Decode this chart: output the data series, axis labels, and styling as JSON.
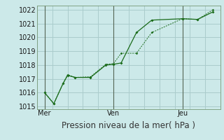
{
  "title": "",
  "xlabel": "Pression niveau de la mer( hPa )",
  "bg_color": "#cce9e9",
  "grid_color": "#aacccc",
  "line_color": "#1a6b1a",
  "vline_color": "#556655",
  "ylim": [
    1014.8,
    1022.3
  ],
  "yticks": [
    1015,
    1016,
    1017,
    1018,
    1019,
    1020,
    1021,
    1022
  ],
  "xlim": [
    0,
    12
  ],
  "xtick_positions": [
    0.5,
    5,
    9.5
  ],
  "xtick_labels": [
    "Mer",
    "Ven",
    "Jeu"
  ],
  "vlines_x": [
    0.5,
    5.0,
    9.5
  ],
  "series1_x": [
    0.5,
    1.1,
    1.7,
    2.0,
    2.5,
    3.5,
    4.5,
    5.0,
    5.5,
    6.5,
    7.5,
    9.5,
    10.5,
    11.5
  ],
  "series1_y": [
    1016.0,
    1015.2,
    1016.65,
    1017.25,
    1017.1,
    1017.1,
    1018.0,
    1018.05,
    1018.15,
    1020.35,
    1021.25,
    1021.35,
    1021.3,
    1021.85
  ],
  "series2_x": [
    0.5,
    1.1,
    1.7,
    2.0,
    2.5,
    3.5,
    4.5,
    5.0,
    5.5,
    6.5,
    7.5,
    9.5,
    10.5,
    11.5
  ],
  "series2_y": [
    1016.0,
    1015.2,
    1016.65,
    1017.3,
    1017.1,
    1017.15,
    1018.05,
    1018.1,
    1018.85,
    1018.85,
    1020.35,
    1021.35,
    1021.3,
    1022.0
  ],
  "xlabel_fontsize": 8.5,
  "tick_fontsize": 7,
  "ytick_label_color": "#1a1a1a"
}
